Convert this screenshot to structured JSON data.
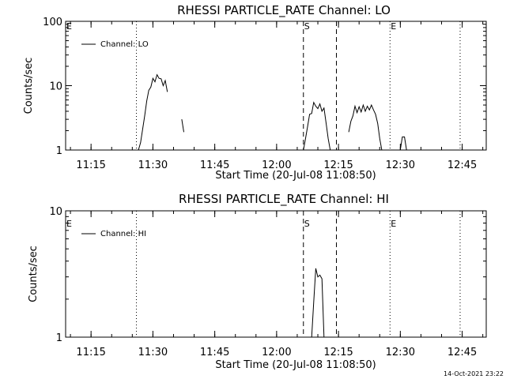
{
  "chart_data": [
    {
      "type": "line",
      "title": "RHESSI PARTICLE_RATE Channel: LO",
      "xlabel": "Start Time (20-Jul-08 11:08:50)",
      "ylabel": "Counts/sec",
      "yscale": "log",
      "xlim": [
        "11:08:50",
        "12:50:50"
      ],
      "ylim": [
        1,
        100
      ],
      "x_ticks": [
        "11:15",
        "11:30",
        "11:45",
        "12:00",
        "12:15",
        "12:30",
        "12:45"
      ],
      "y_ticks": [
        "1",
        "10",
        "100"
      ],
      "legend": "Channel: LO",
      "legend_position": "top-left",
      "event_markers": [
        {
          "label": "E",
          "time": "11:08:50",
          "style": "none"
        },
        {
          "label": "",
          "time": "11:26:00",
          "style": "dotted"
        },
        {
          "label": "S",
          "time": "12:06:30",
          "style": "dashed"
        },
        {
          "label": "",
          "time": "12:14:30",
          "style": "dashed"
        },
        {
          "label": "E",
          "time": "12:27:30",
          "style": "dotted"
        },
        {
          "label": "",
          "time": "12:44:30",
          "style": "dotted"
        }
      ],
      "series": [
        {
          "name": "Channel: LO",
          "segments": [
            [
              [
                "11:26:30",
                1.0
              ],
              [
                "11:27:00",
                1.3
              ],
              [
                "11:27:30",
                2.1
              ],
              [
                "11:28:00",
                3.4
              ],
              [
                "11:28:30",
                5.8
              ],
              [
                "11:29:00",
                8.5
              ],
              [
                "11:29:30",
                9.5
              ],
              [
                "11:30:00",
                13.0
              ],
              [
                "11:30:30",
                11.5
              ],
              [
                "11:31:00",
                14.8
              ],
              [
                "11:31:30",
                13.0
              ],
              [
                "11:32:00",
                12.8
              ],
              [
                "11:32:30",
                10.0
              ],
              [
                "11:33:00",
                12.0
              ],
              [
                "11:33:30",
                8.0
              ]
            ],
            [
              [
                "11:37:00",
                3.0
              ],
              [
                "11:37:30",
                1.9
              ]
            ],
            [
              [
                "12:06:30",
                1.0
              ],
              [
                "12:07:00",
                1.5
              ],
              [
                "12:07:30",
                2.3
              ],
              [
                "12:08:00",
                3.6
              ],
              [
                "12:08:30",
                3.7
              ],
              [
                "12:09:00",
                5.5
              ],
              [
                "12:09:30",
                4.8
              ],
              [
                "12:10:00",
                4.4
              ],
              [
                "12:10:30",
                5.2
              ],
              [
                "12:11:00",
                4.0
              ],
              [
                "12:11:30",
                4.5
              ],
              [
                "12:12:00",
                2.6
              ],
              [
                "12:12:30",
                1.5
              ],
              [
                "12:13:00",
                1.0
              ]
            ],
            [
              [
                "12:17:30",
                1.9
              ],
              [
                "12:18:00",
                2.8
              ],
              [
                "12:18:30",
                3.4
              ],
              [
                "12:19:00",
                4.8
              ],
              [
                "12:19:30",
                3.8
              ],
              [
                "12:20:00",
                4.7
              ],
              [
                "12:20:30",
                3.9
              ],
              [
                "12:21:00",
                5.0
              ],
              [
                "12:21:30",
                4.0
              ],
              [
                "12:22:00",
                4.8
              ],
              [
                "12:22:30",
                4.2
              ],
              [
                "12:23:00",
                5.0
              ],
              [
                "12:23:30",
                4.2
              ],
              [
                "12:24:00",
                3.6
              ],
              [
                "12:24:30",
                2.6
              ],
              [
                "12:25:00",
                1.5
              ],
              [
                "12:25:30",
                1.0
              ]
            ],
            [
              [
                "12:30:00",
                1.0
              ],
              [
                "12:30:30",
                1.6
              ],
              [
                "12:31:00",
                1.6
              ],
              [
                "12:31:30",
                1.0
              ]
            ]
          ]
        }
      ]
    },
    {
      "type": "line",
      "title": "RHESSI PARTICLE_RATE Channel: HI",
      "xlabel": "Start Time (20-Jul-08 11:08:50)",
      "ylabel": "Counts/sec",
      "yscale": "log",
      "xlim": [
        "11:08:50",
        "12:50:50"
      ],
      "ylim": [
        1,
        10
      ],
      "x_ticks": [
        "11:15",
        "11:30",
        "11:45",
        "12:00",
        "12:15",
        "12:30",
        "12:45"
      ],
      "y_ticks": [
        "1",
        "10"
      ],
      "legend": "Channel: HI",
      "legend_position": "top-left",
      "event_markers": [
        {
          "label": "E",
          "time": "11:08:50",
          "style": "none"
        },
        {
          "label": "",
          "time": "11:26:00",
          "style": "dotted"
        },
        {
          "label": "S",
          "time": "12:06:30",
          "style": "dashed"
        },
        {
          "label": "",
          "time": "12:14:30",
          "style": "dashed"
        },
        {
          "label": "E",
          "time": "12:27:30",
          "style": "dotted"
        },
        {
          "label": "",
          "time": "12:44:30",
          "style": "dotted"
        }
      ],
      "series": [
        {
          "name": "Channel: HI",
          "segments": [
            [
              [
                "12:08:30",
                1.0
              ],
              [
                "12:09:00",
                1.9
              ],
              [
                "12:09:30",
                3.5
              ],
              [
                "12:10:00",
                3.0
              ],
              [
                "12:10:30",
                3.1
              ],
              [
                "12:11:00",
                2.9
              ],
              [
                "12:11:30",
                1.0
              ]
            ]
          ]
        }
      ]
    }
  ],
  "footer": {
    "timestamp": "14-Oct-2021 23:22"
  }
}
